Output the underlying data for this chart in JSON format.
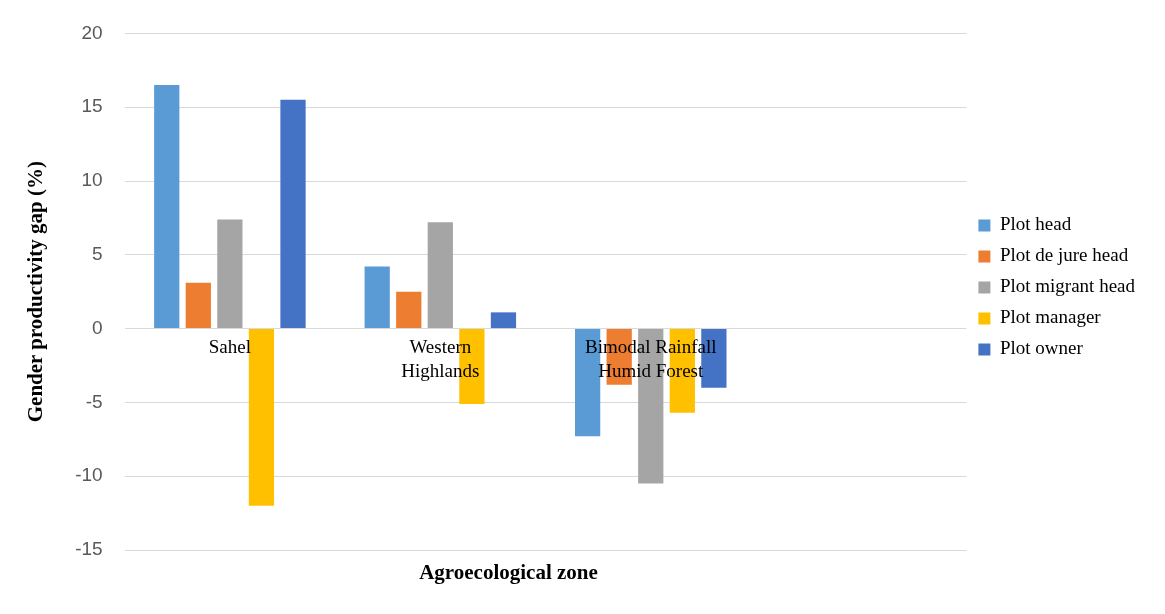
{
  "chart_data": {
    "type": "bar",
    "xlabel": "Agroecological zone",
    "ylabel": "Gender productivity gap (%)",
    "categories": [
      "Sahel",
      "Western\nHighlands",
      "Bimodal Rainfall\nHumid Forest",
      null
    ],
    "series": [
      {
        "name": "Plot head",
        "color": "#5b9bd5",
        "values": [
          16.5,
          4.2,
          -7.3,
          null
        ]
      },
      {
        "name": "Plot de jure head",
        "color": "#ed7d31",
        "values": [
          3.1,
          2.5,
          -3.8,
          null
        ]
      },
      {
        "name": "Plot migrant head",
        "color": "#a5a5a5",
        "values": [
          7.4,
          7.2,
          -10.5,
          null
        ]
      },
      {
        "name": "Plot manager",
        "color": "#ffc000",
        "values": [
          -12.0,
          -5.1,
          -5.7,
          null
        ]
      },
      {
        "name": "Plot owner",
        "color": "#4472c4",
        "values": [
          15.5,
          1.1,
          -4.0,
          null
        ]
      }
    ],
    "ylim": [
      -15,
      20
    ],
    "yticks": [
      -15,
      -10,
      -5,
      0,
      5,
      10,
      15,
      20
    ],
    "grid": "y",
    "legend": "right"
  }
}
